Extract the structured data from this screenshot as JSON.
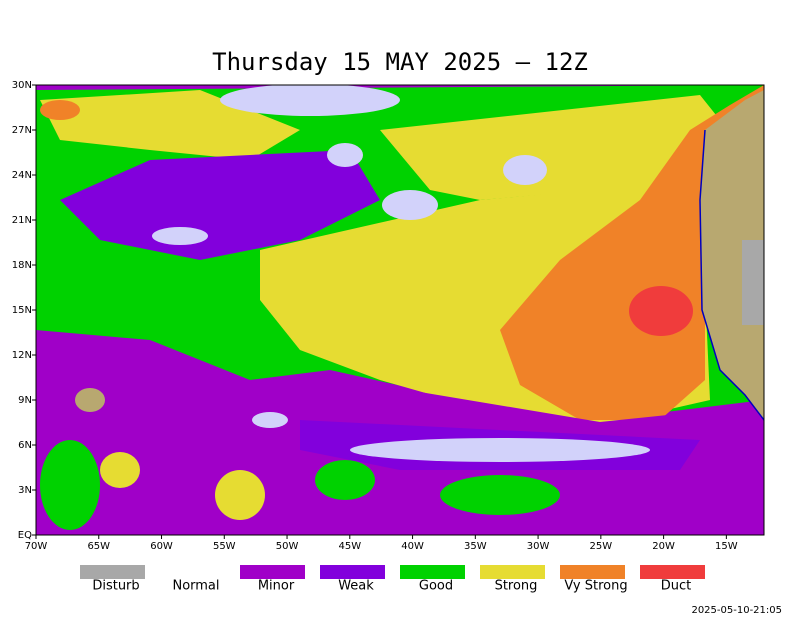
{
  "title": "Thursday 15 MAY 2025 — 12Z",
  "x_ticks": [
    "70W",
    "65W",
    "60W",
    "55W",
    "50W",
    "45W",
    "40W",
    "35W",
    "30W",
    "25W",
    "20W",
    "15W"
  ],
  "y_ticks": [
    "EQ",
    "3N",
    "6N",
    "9N",
    "12N",
    "15N",
    "18N",
    "21N",
    "24N",
    "27N",
    "30N"
  ],
  "legend": [
    {
      "name": "Disturb",
      "color": "#a8a8a8"
    },
    {
      "name": "Normal"
    },
    {
      "name": "Minor",
      "color": "#a000c8"
    },
    {
      "name": "Weak",
      "color": "#8200dc"
    },
    {
      "name": "Good",
      "color": "#00d200"
    },
    {
      "name": "Strong",
      "color": "#e6dc32"
    },
    {
      "name": "Vy Strong",
      "color": "#f08228"
    },
    {
      "name": "Duct",
      "color": "#f03c3c"
    }
  ],
  "timestamp": "2025-05-10-21:05"
}
